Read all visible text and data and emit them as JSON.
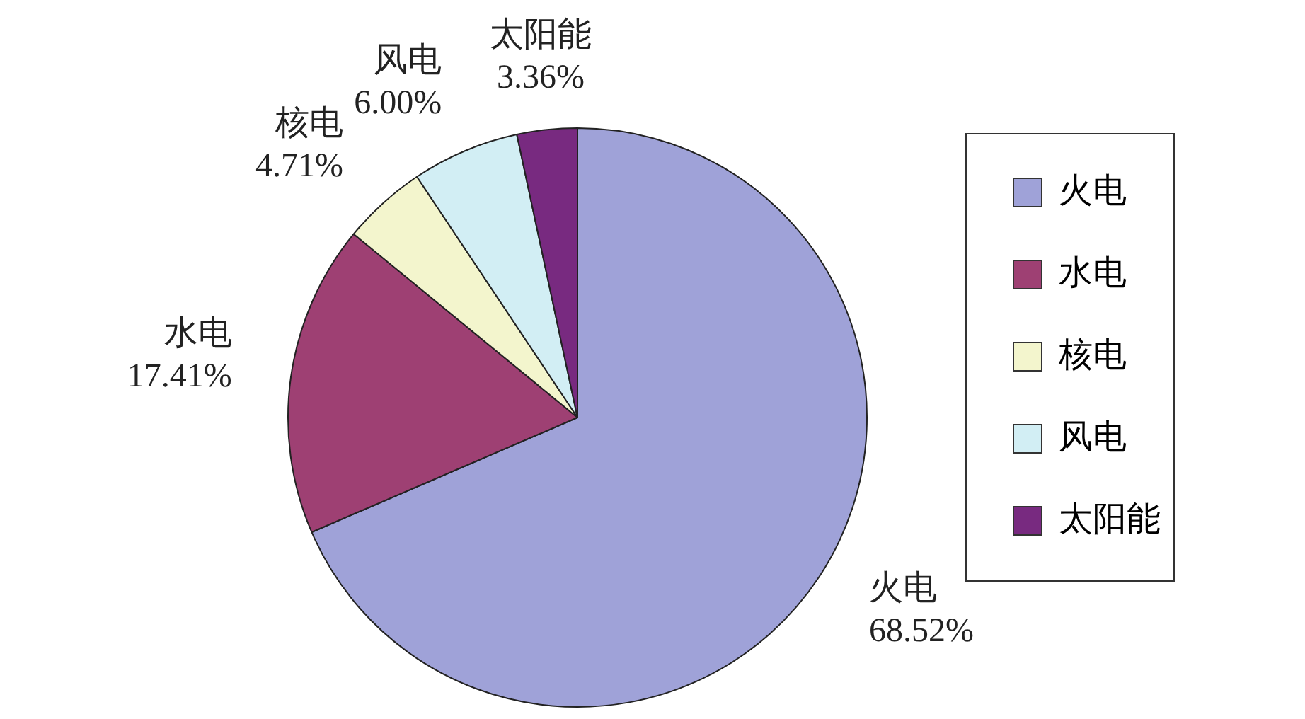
{
  "chart_data": {
    "type": "pie",
    "categories": [
      "火电",
      "水电",
      "核电",
      "风电",
      "太阳能"
    ],
    "values": [
      68.52,
      17.41,
      4.71,
      6.0,
      3.36
    ],
    "value_labels": [
      "68.52%",
      "17.41%",
      "4.71%",
      "6.00%",
      "3.36%"
    ],
    "colors": [
      "#9fa2d8",
      "#9e4073",
      "#f3f5cd",
      "#d2eef4",
      "#782a80"
    ],
    "legend": "right"
  }
}
